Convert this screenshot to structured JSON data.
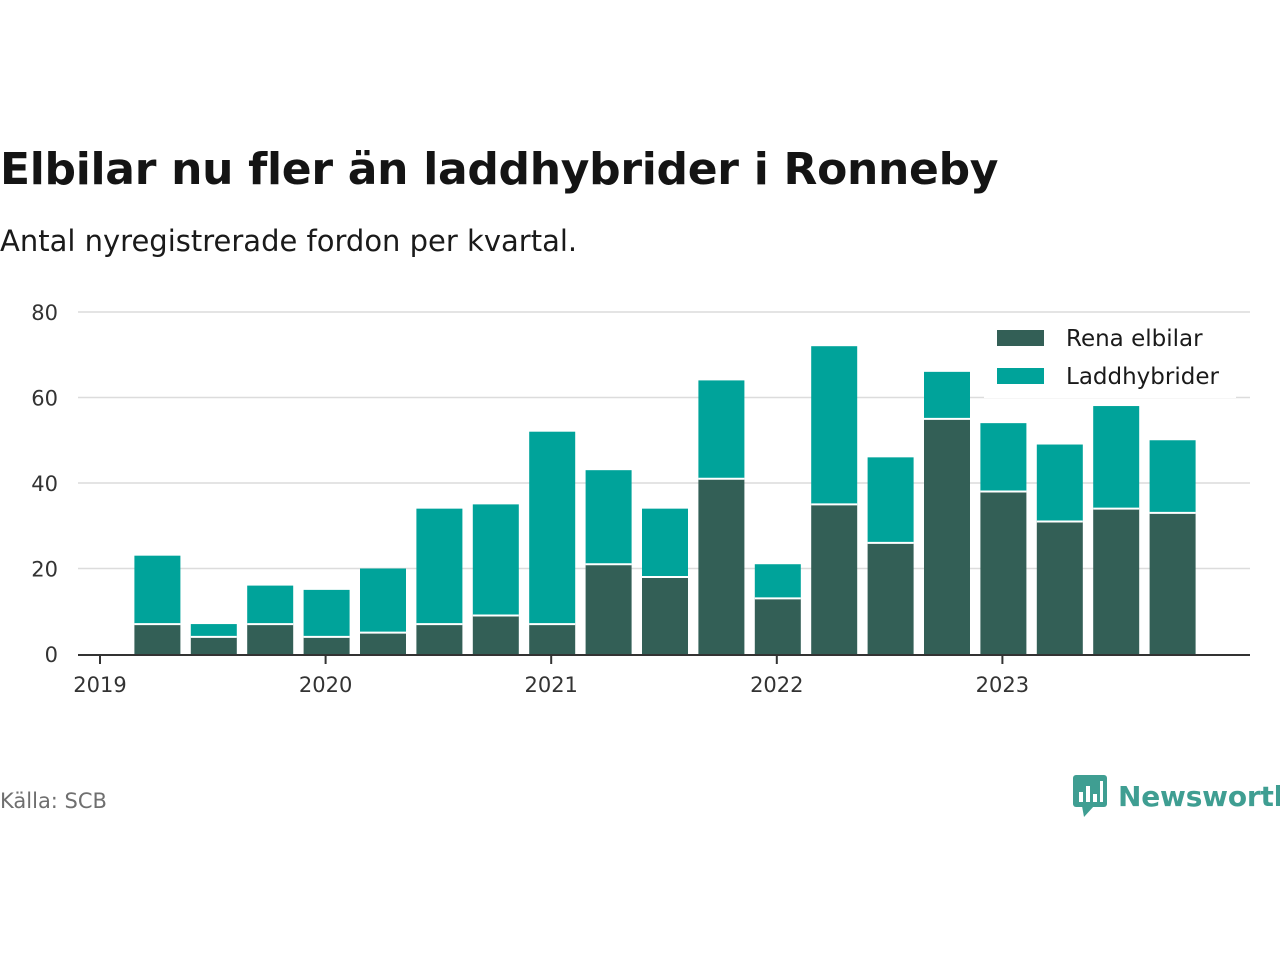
{
  "header": {
    "title": "Elbilar nu fler än laddhybrider i Ronneby",
    "subtitle": "Antal nyregistrerade fordon per kvartal."
  },
  "footer": {
    "source": "Källa: SCB",
    "brand": "Newsworthy",
    "brand_icon": "bar-chart-speech-icon"
  },
  "colors": {
    "elbilar": "#335f56",
    "laddhybrider": "#00a39a",
    "grid": "#dcdcdc",
    "axis": "#333333",
    "brand": "#3f9e92"
  },
  "chart_data": {
    "type": "bar",
    "stacked": true,
    "title": "Elbilar nu fler än laddhybrider i Ronneby",
    "subtitle": "Antal nyregistrerade fordon per kvartal.",
    "xlabel": "",
    "ylabel": "",
    "ylim": [
      0,
      80
    ],
    "yticks": [
      0,
      20,
      40,
      60,
      80
    ],
    "xticks": [
      "2019",
      "2020",
      "2021",
      "2022",
      "2023"
    ],
    "grid": true,
    "legend_position": "top-right",
    "categories": [
      "2019 Q2",
      "2019 Q3",
      "2019 Q4",
      "2020 Q1",
      "2020 Q2",
      "2020 Q3",
      "2020 Q4",
      "2021 Q1",
      "2021 Q2",
      "2021 Q3",
      "2021 Q4",
      "2022 Q1",
      "2022 Q2",
      "2022 Q3",
      "2022 Q4",
      "2023 Q1",
      "2023 Q2",
      "2023 Q3",
      "2023 Q4"
    ],
    "series": [
      {
        "name": "Rena elbilar",
        "values": [
          7,
          4,
          7,
          4,
          5,
          7,
          9,
          7,
          21,
          18,
          41,
          13,
          35,
          26,
          55,
          38,
          31,
          34,
          33
        ]
      },
      {
        "name": "Laddhybrider",
        "values": [
          16,
          3,
          9,
          11,
          15,
          27,
          26,
          45,
          22,
          16,
          23,
          8,
          37,
          20,
          11,
          16,
          18,
          24,
          17
        ]
      }
    ]
  }
}
